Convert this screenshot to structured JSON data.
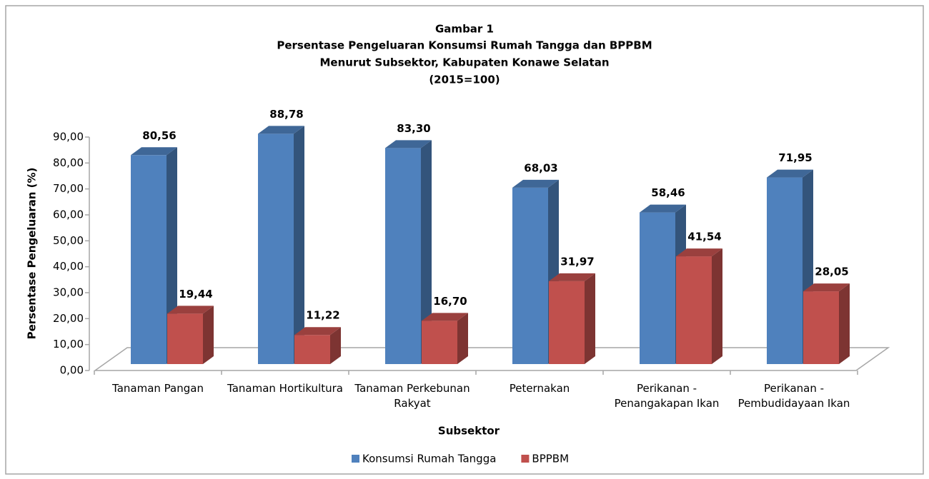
{
  "chart_data": {
    "type": "bar3d",
    "title": [
      "Gambar 1",
      "Persentase Pengeluaran Konsumsi Rumah Tangga dan BPPBM",
      "Menurut Subsektor, Kabupaten Konawe Selatan",
      "(2015=100)"
    ],
    "x_label": "Subsektor",
    "y_label": "Persentase Pengeluaran (%)",
    "categories": [
      "Tanaman Pangan",
      "Tanaman Hortikultura",
      "Tanaman Perkebunan Rakyat",
      "Peternakan",
      "Perikanan - Penangakapan Ikan",
      "Perikanan - Pembudidayaan Ikan"
    ],
    "series": [
      {
        "name": "Konsumsi Rumah Tangga",
        "color": "#4f81bd",
        "values": [
          80.56,
          88.78,
          83.3,
          68.03,
          58.46,
          71.95
        ],
        "value_labels": [
          "80,56",
          "88,78",
          "83,30",
          "68,03",
          "58,46",
          "71,95"
        ]
      },
      {
        "name": "BPPBM",
        "color": "#c0504d",
        "values": [
          19.44,
          11.22,
          16.7,
          31.97,
          41.54,
          28.05
        ],
        "value_labels": [
          "19,44",
          "11,22",
          "16,70",
          "31,97",
          "41,54",
          "28,05"
        ]
      }
    ],
    "ylim": [
      0,
      90
    ],
    "yticks": [
      {
        "value": 0,
        "label": "0,00"
      },
      {
        "value": 10,
        "label": "10,00"
      },
      {
        "value": 20,
        "label": "20,00"
      },
      {
        "value": 30,
        "label": "30,00"
      },
      {
        "value": 40,
        "label": "40,00"
      },
      {
        "value": 50,
        "label": "50,00"
      },
      {
        "value": 60,
        "label": "60,00"
      },
      {
        "value": 70,
        "label": "70,00"
      },
      {
        "value": 80,
        "label": "80,00"
      },
      {
        "value": 90,
        "label": "90,00"
      }
    ],
    "legend": "bottom"
  }
}
